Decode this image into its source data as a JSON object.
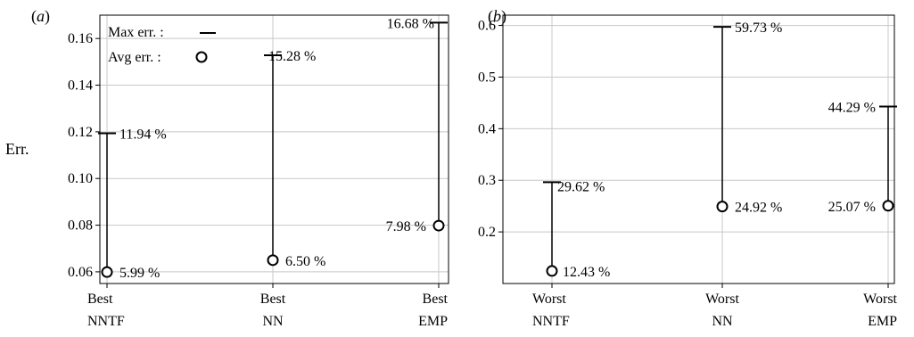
{
  "chart_data": [
    {
      "type": "scatter",
      "panel_label": "a",
      "ylabel": "Err.",
      "categories": [
        [
          "Best",
          "NNTF"
        ],
        [
          "Best",
          "NN"
        ],
        [
          "Best",
          "EMP"
        ]
      ],
      "ylim": [
        0.055,
        0.17
      ],
      "yticks": [
        0.06,
        0.08,
        0.1,
        0.12,
        0.14,
        0.16
      ],
      "ytick_labels": [
        "0.06",
        "0.08",
        "0.10",
        "0.12",
        "0.14",
        "0.16"
      ],
      "max_err": [
        0.1194,
        0.1528,
        0.1668
      ],
      "avg_err": [
        0.0599,
        0.065,
        0.0798
      ],
      "max_labels": [
        "11.94 %",
        "15.28 %",
        "16.68 %"
      ],
      "avg_labels": [
        "5.99 %",
        "6.50 %",
        "7.98 %"
      ],
      "legend": {
        "max_label": "Max err. :",
        "avg_label": "Avg err. :",
        "position": "top-left"
      },
      "grid": true
    },
    {
      "type": "scatter",
      "panel_label": "b",
      "ylabel": "",
      "categories": [
        [
          "Worst",
          "NNTF"
        ],
        [
          "Worst",
          "NN"
        ],
        [
          "Worst",
          "EMP"
        ]
      ],
      "ylim": [
        0.1,
        0.62
      ],
      "yticks": [
        0.2,
        0.3,
        0.4,
        0.5,
        0.6
      ],
      "ytick_labels": [
        "0.2",
        "0.3",
        "0.4",
        "0.5",
        "0.6"
      ],
      "max_err": [
        0.2962,
        0.5973,
        0.4429
      ],
      "avg_err": [
        0.1243,
        0.2492,
        0.2507
      ],
      "max_labels": [
        "29.62 %",
        "59.73 %",
        "44.29 %"
      ],
      "avg_labels": [
        "12.43 %",
        "24.92 %",
        "25.07 %"
      ],
      "grid": true
    }
  ]
}
